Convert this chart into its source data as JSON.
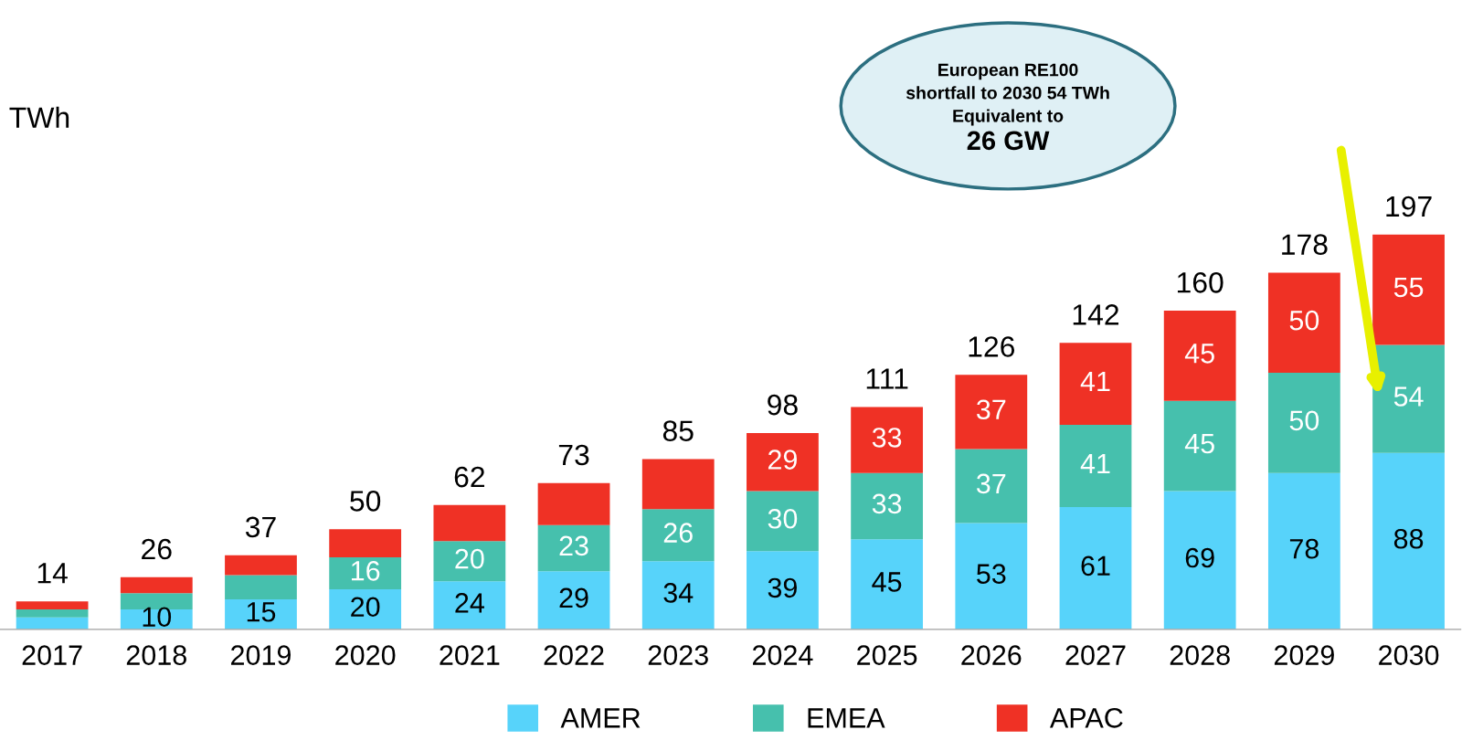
{
  "chart_data": {
    "type": "bar",
    "stacked": true,
    "ylabel": "TWh",
    "categories": [
      "2017",
      "2018",
      "2019",
      "2020",
      "2021",
      "2022",
      "2023",
      "2024",
      "2025",
      "2026",
      "2027",
      "2028",
      "2029",
      "2030"
    ],
    "series": [
      {
        "name": "AMER",
        "color": "#57d3fa",
        "values": [
          6,
          10,
          15,
          20,
          24,
          29,
          34,
          39,
          45,
          53,
          61,
          69,
          78,
          88
        ],
        "value_labels": [
          null,
          "10",
          "15",
          "20",
          "24",
          "29",
          "34",
          "39",
          "45",
          "53",
          "61",
          "69",
          "78",
          "88"
        ]
      },
      {
        "name": "EMEA",
        "color": "#46c0ad",
        "values": [
          4,
          8,
          12,
          16,
          20,
          23,
          26,
          30,
          33,
          37,
          41,
          45,
          50,
          54
        ],
        "value_labels": [
          null,
          null,
          null,
          "16",
          "20",
          "23",
          "26",
          "30",
          "33",
          "37",
          "41",
          "45",
          "50",
          "54"
        ]
      },
      {
        "name": "APAC",
        "color": "#ef3125",
        "values": [
          4,
          8,
          10,
          14,
          18,
          21,
          25,
          29,
          33,
          37,
          41,
          45,
          50,
          55
        ],
        "value_labels": [
          null,
          null,
          null,
          null,
          null,
          null,
          null,
          "29",
          "33",
          "37",
          "41",
          "45",
          "50",
          "55"
        ]
      }
    ],
    "totals": [
      "14",
      "26",
      "37",
      "50",
      "62",
      "73",
      "85",
      "98",
      "111",
      "126",
      "142",
      "160",
      "178",
      "197"
    ],
    "annotations": [
      "European RE100\nshortfall to 2030 54 TWh\nEquivalent to\n26 GW"
    ],
    "legend": "bottom",
    "grid": false
  }
}
